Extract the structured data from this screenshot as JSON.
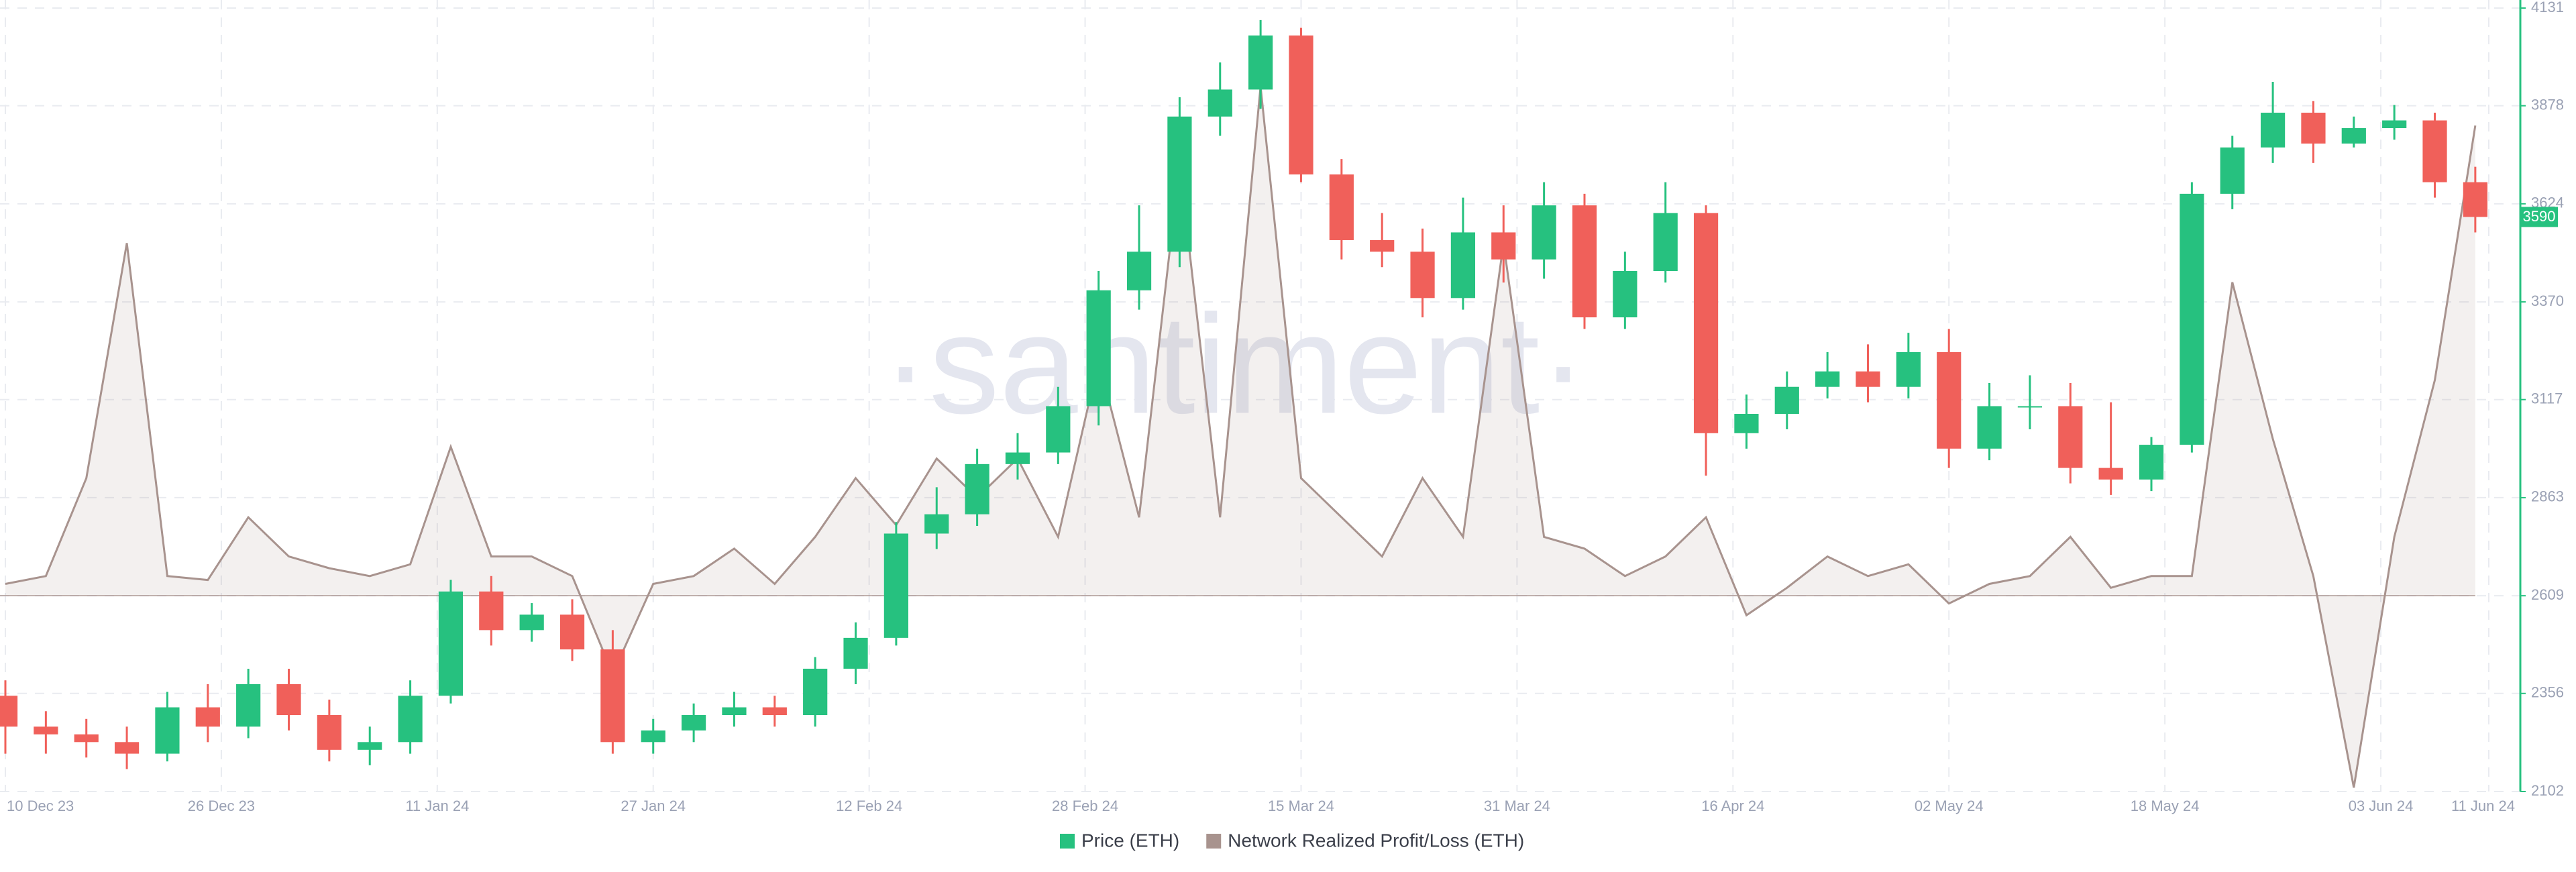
{
  "chart_data": {
    "type": "candlestick",
    "watermark": "·santiment·",
    "xlim": [
      0,
      184
    ],
    "xticks": [
      {
        "value": 0,
        "label": "10 Dec 23"
      },
      {
        "value": 16,
        "label": "26 Dec 23"
      },
      {
        "value": 32,
        "label": "11 Jan 24"
      },
      {
        "value": 48,
        "label": "27 Jan 24"
      },
      {
        "value": 64,
        "label": "12 Feb 24"
      },
      {
        "value": 80,
        "label": "28 Feb 24"
      },
      {
        "value": 96,
        "label": "15 Mar 24"
      },
      {
        "value": 112,
        "label": "31 Mar 24"
      },
      {
        "value": 128,
        "label": "16 Apr 24"
      },
      {
        "value": 144,
        "label": "02 May 24"
      },
      {
        "value": 160,
        "label": "18 May 24"
      },
      {
        "value": 176,
        "label": "03 Jun 24"
      },
      {
        "value": 184,
        "label": "11 Jun 24"
      }
    ],
    "ylim": [
      2102,
      4131
    ],
    "yticks": [
      2102,
      2356,
      2609,
      2863,
      3117,
      3370,
      3624,
      3878,
      4131
    ],
    "y2lim": [
      -0.5,
      1.5
    ],
    "grid": true,
    "last_price": 3590,
    "x": [
      0,
      3,
      6,
      9,
      12,
      15,
      18,
      21,
      24,
      27,
      30,
      33,
      36,
      39,
      42,
      45,
      48,
      51,
      54,
      57,
      60,
      63,
      66,
      69,
      72,
      75,
      78,
      81,
      84,
      87,
      90,
      93,
      96,
      99,
      102,
      105,
      108,
      111,
      114,
      117,
      120,
      123,
      126,
      129,
      132,
      135,
      138,
      141,
      144,
      147,
      150,
      153,
      156,
      159,
      162,
      165,
      168,
      171,
      174,
      177,
      180,
      183
    ],
    "series": [
      {
        "name": "Price (ETH)",
        "type": "candlestick",
        "color": "#26c17f",
        "down_color": "#f0605a",
        "open": [
          2350,
          2270,
          2250,
          2230,
          2200,
          2320,
          2270,
          2380,
          2300,
          2210,
          2230,
          2350,
          2620,
          2520,
          2560,
          2470,
          2230,
          2260,
          2300,
          2320,
          2300,
          2420,
          2500,
          2770,
          2820,
          2950,
          2980,
          3100,
          3400,
          3500,
          3850,
          3920,
          4060,
          3700,
          3530,
          3500,
          3380,
          3550,
          3480,
          3620,
          3330,
          3450,
          3600,
          3030,
          3080,
          3150,
          3190,
          3150,
          3240,
          2990,
          3100,
          3100,
          2940,
          2910,
          3000,
          3650,
          3770,
          3860,
          3780,
          3820,
          3840,
          3680
        ],
        "high": [
          2390,
          2310,
          2290,
          2270,
          2360,
          2380,
          2420,
          2420,
          2340,
          2270,
          2390,
          2650,
          2660,
          2590,
          2600,
          2520,
          2290,
          2330,
          2360,
          2350,
          2450,
          2540,
          2800,
          2890,
          2990,
          3030,
          3150,
          3450,
          3620,
          3900,
          3990,
          4100,
          4080,
          3740,
          3600,
          3560,
          3640,
          3620,
          3680,
          3650,
          3500,
          3680,
          3620,
          3130,
          3190,
          3240,
          3260,
          3290,
          3300,
          3160,
          3180,
          3160,
          3110,
          3020,
          3680,
          3800,
          3940,
          3890,
          3850,
          3880,
          3860,
          3720
        ],
        "low": [
          2200,
          2200,
          2190,
          2160,
          2180,
          2230,
          2240,
          2260,
          2180,
          2170,
          2200,
          2330,
          2480,
          2490,
          2440,
          2200,
          2200,
          2230,
          2270,
          2270,
          2270,
          2380,
          2480,
          2730,
          2790,
          2910,
          2950,
          3050,
          3350,
          3460,
          3800,
          3870,
          3680,
          3480,
          3460,
          3330,
          3350,
          3420,
          3430,
          3300,
          3300,
          3420,
          2920,
          2990,
          3040,
          3120,
          3110,
          3120,
          2940,
          2960,
          3040,
          2900,
          2870,
          2880,
          2980,
          3610,
          3730,
          3730,
          3770,
          3790,
          3640,
          3550
        ],
        "close": [
          2270,
          2250,
          2230,
          2200,
          2320,
          2270,
          2380,
          2300,
          2210,
          2230,
          2350,
          2620,
          2520,
          2560,
          2470,
          2230,
          2260,
          2300,
          2320,
          2300,
          2420,
          2500,
          2770,
          2820,
          2950,
          2980,
          3100,
          3400,
          3500,
          3850,
          3920,
          4060,
          3700,
          3530,
          3500,
          3380,
          3550,
          3480,
          3620,
          3330,
          3450,
          3600,
          3030,
          3080,
          3150,
          3190,
          3150,
          3240,
          2990,
          3100,
          3100,
          2940,
          2910,
          3000,
          3650,
          3770,
          3860,
          3780,
          3820,
          3840,
          3680,
          3590
        ]
      },
      {
        "name": "Network Realized Profit/Loss (ETH)",
        "type": "area",
        "axis": "y2",
        "color": "#a8938e",
        "values": [
          0.03,
          0.05,
          0.3,
          0.9,
          0.05,
          0.04,
          0.2,
          0.1,
          0.07,
          0.05,
          0.08,
          0.38,
          0.1,
          0.1,
          0.05,
          -0.2,
          0.03,
          0.05,
          0.12,
          0.03,
          0.15,
          0.3,
          0.18,
          0.35,
          0.25,
          0.35,
          0.15,
          0.6,
          0.2,
          1.1,
          0.2,
          1.3,
          0.3,
          0.2,
          0.1,
          0.3,
          0.15,
          0.9,
          0.15,
          0.12,
          0.05,
          0.1,
          0.2,
          -0.05,
          0.02,
          0.1,
          0.05,
          0.08,
          -0.02,
          0.03,
          0.05,
          0.15,
          0.02,
          0.05,
          0.05,
          0.8,
          0.4,
          0.05,
          -0.49,
          0.15,
          0.55,
          1.2
        ]
      }
    ]
  }
}
